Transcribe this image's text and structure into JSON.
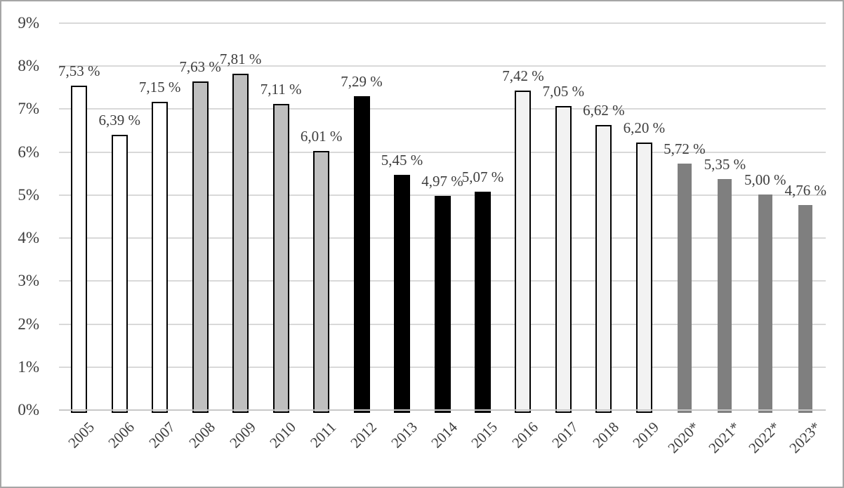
{
  "chart_data": {
    "type": "bar",
    "categories": [
      "2005",
      "2006",
      "2007",
      "2008",
      "2009",
      "2010",
      "2011",
      "2012",
      "2013",
      "2014",
      "2015",
      "2016",
      "2017",
      "2018",
      "2019",
      "2020*",
      "2021*",
      "2022*",
      "2023*"
    ],
    "values": [
      7.53,
      6.39,
      7.15,
      7.63,
      7.81,
      7.11,
      6.01,
      7.29,
      5.45,
      4.97,
      5.07,
      7.42,
      7.05,
      6.62,
      6.2,
      5.72,
      5.35,
      5.0,
      4.76
    ],
    "value_labels": [
      "7,53 %",
      "6,39 %",
      "7,15 %",
      "7,63 %",
      "7,81 %",
      "7,11 %",
      "6,01 %",
      "7,29 %",
      "5,45 %",
      "4,97 %",
      "5,07 %",
      "7,42 %",
      "7,05 %",
      "6,62 %",
      "6,20 %",
      "5,72 %",
      "5,35 %",
      "5,00 %",
      "4,76 %"
    ],
    "bar_styles": [
      "white",
      "white",
      "white",
      "gray",
      "gray",
      "gray",
      "gray",
      "black",
      "black",
      "black",
      "black",
      "light",
      "light",
      "light",
      "light",
      "darkgray",
      "darkgray",
      "darkgray",
      "darkgray"
    ],
    "y_ticks": [
      "0%",
      "1%",
      "2%",
      "3%",
      "4%",
      "5%",
      "6%",
      "7%",
      "8%",
      "9%"
    ],
    "ylim": [
      0,
      9
    ],
    "title": "",
    "xlabel": "",
    "ylabel": "",
    "grid": "horizontal",
    "legend": "none",
    "colors": {
      "white_fill": "#FFFFFF",
      "gray_fill": "#BFBFBF",
      "black_fill": "#000000",
      "light_fill": "#F2F2F2",
      "darkgray_fill": "#7F7F7F",
      "bar_border": "#000000",
      "gridline": "#D9D9D9",
      "axis_line": "#C8C8C8",
      "text": "#3D3D3D",
      "frame_border": "#A6A6A6"
    }
  }
}
